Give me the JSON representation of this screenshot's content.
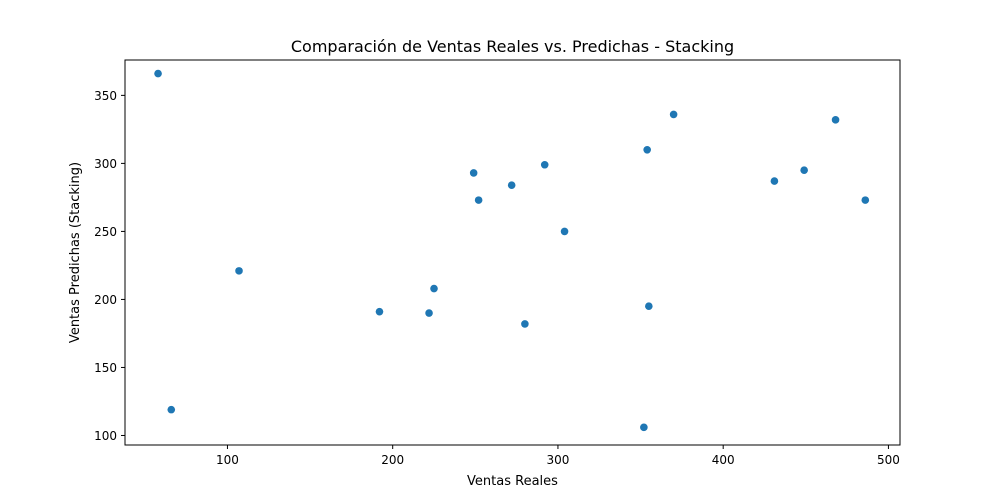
{
  "chart_data": {
    "type": "scatter",
    "title": "Comparación de Ventas Reales vs. Predichas - Stacking",
    "xlabel": "Ventas Reales",
    "ylabel": "Ventas Predichas (Stacking)",
    "xlim": [
      38,
      507
    ],
    "ylim": [
      93,
      376
    ],
    "xticks": [
      100,
      200,
      300,
      400,
      500
    ],
    "yticks": [
      100,
      150,
      200,
      250,
      300,
      350
    ],
    "grid": false,
    "marker_color": "#1f77b4",
    "points": [
      {
        "x": 58,
        "y": 366
      },
      {
        "x": 66,
        "y": 119
      },
      {
        "x": 107,
        "y": 221
      },
      {
        "x": 192,
        "y": 191
      },
      {
        "x": 222,
        "y": 190
      },
      {
        "x": 225,
        "y": 208
      },
      {
        "x": 249,
        "y": 293
      },
      {
        "x": 252,
        "y": 273
      },
      {
        "x": 272,
        "y": 284
      },
      {
        "x": 280,
        "y": 182
      },
      {
        "x": 292,
        "y": 299
      },
      {
        "x": 304,
        "y": 250
      },
      {
        "x": 352,
        "y": 106
      },
      {
        "x": 354,
        "y": 310
      },
      {
        "x": 355,
        "y": 195
      },
      {
        "x": 370,
        "y": 336
      },
      {
        "x": 431,
        "y": 287
      },
      {
        "x": 449,
        "y": 295
      },
      {
        "x": 468,
        "y": 332
      },
      {
        "x": 486,
        "y": 273
      }
    ]
  }
}
